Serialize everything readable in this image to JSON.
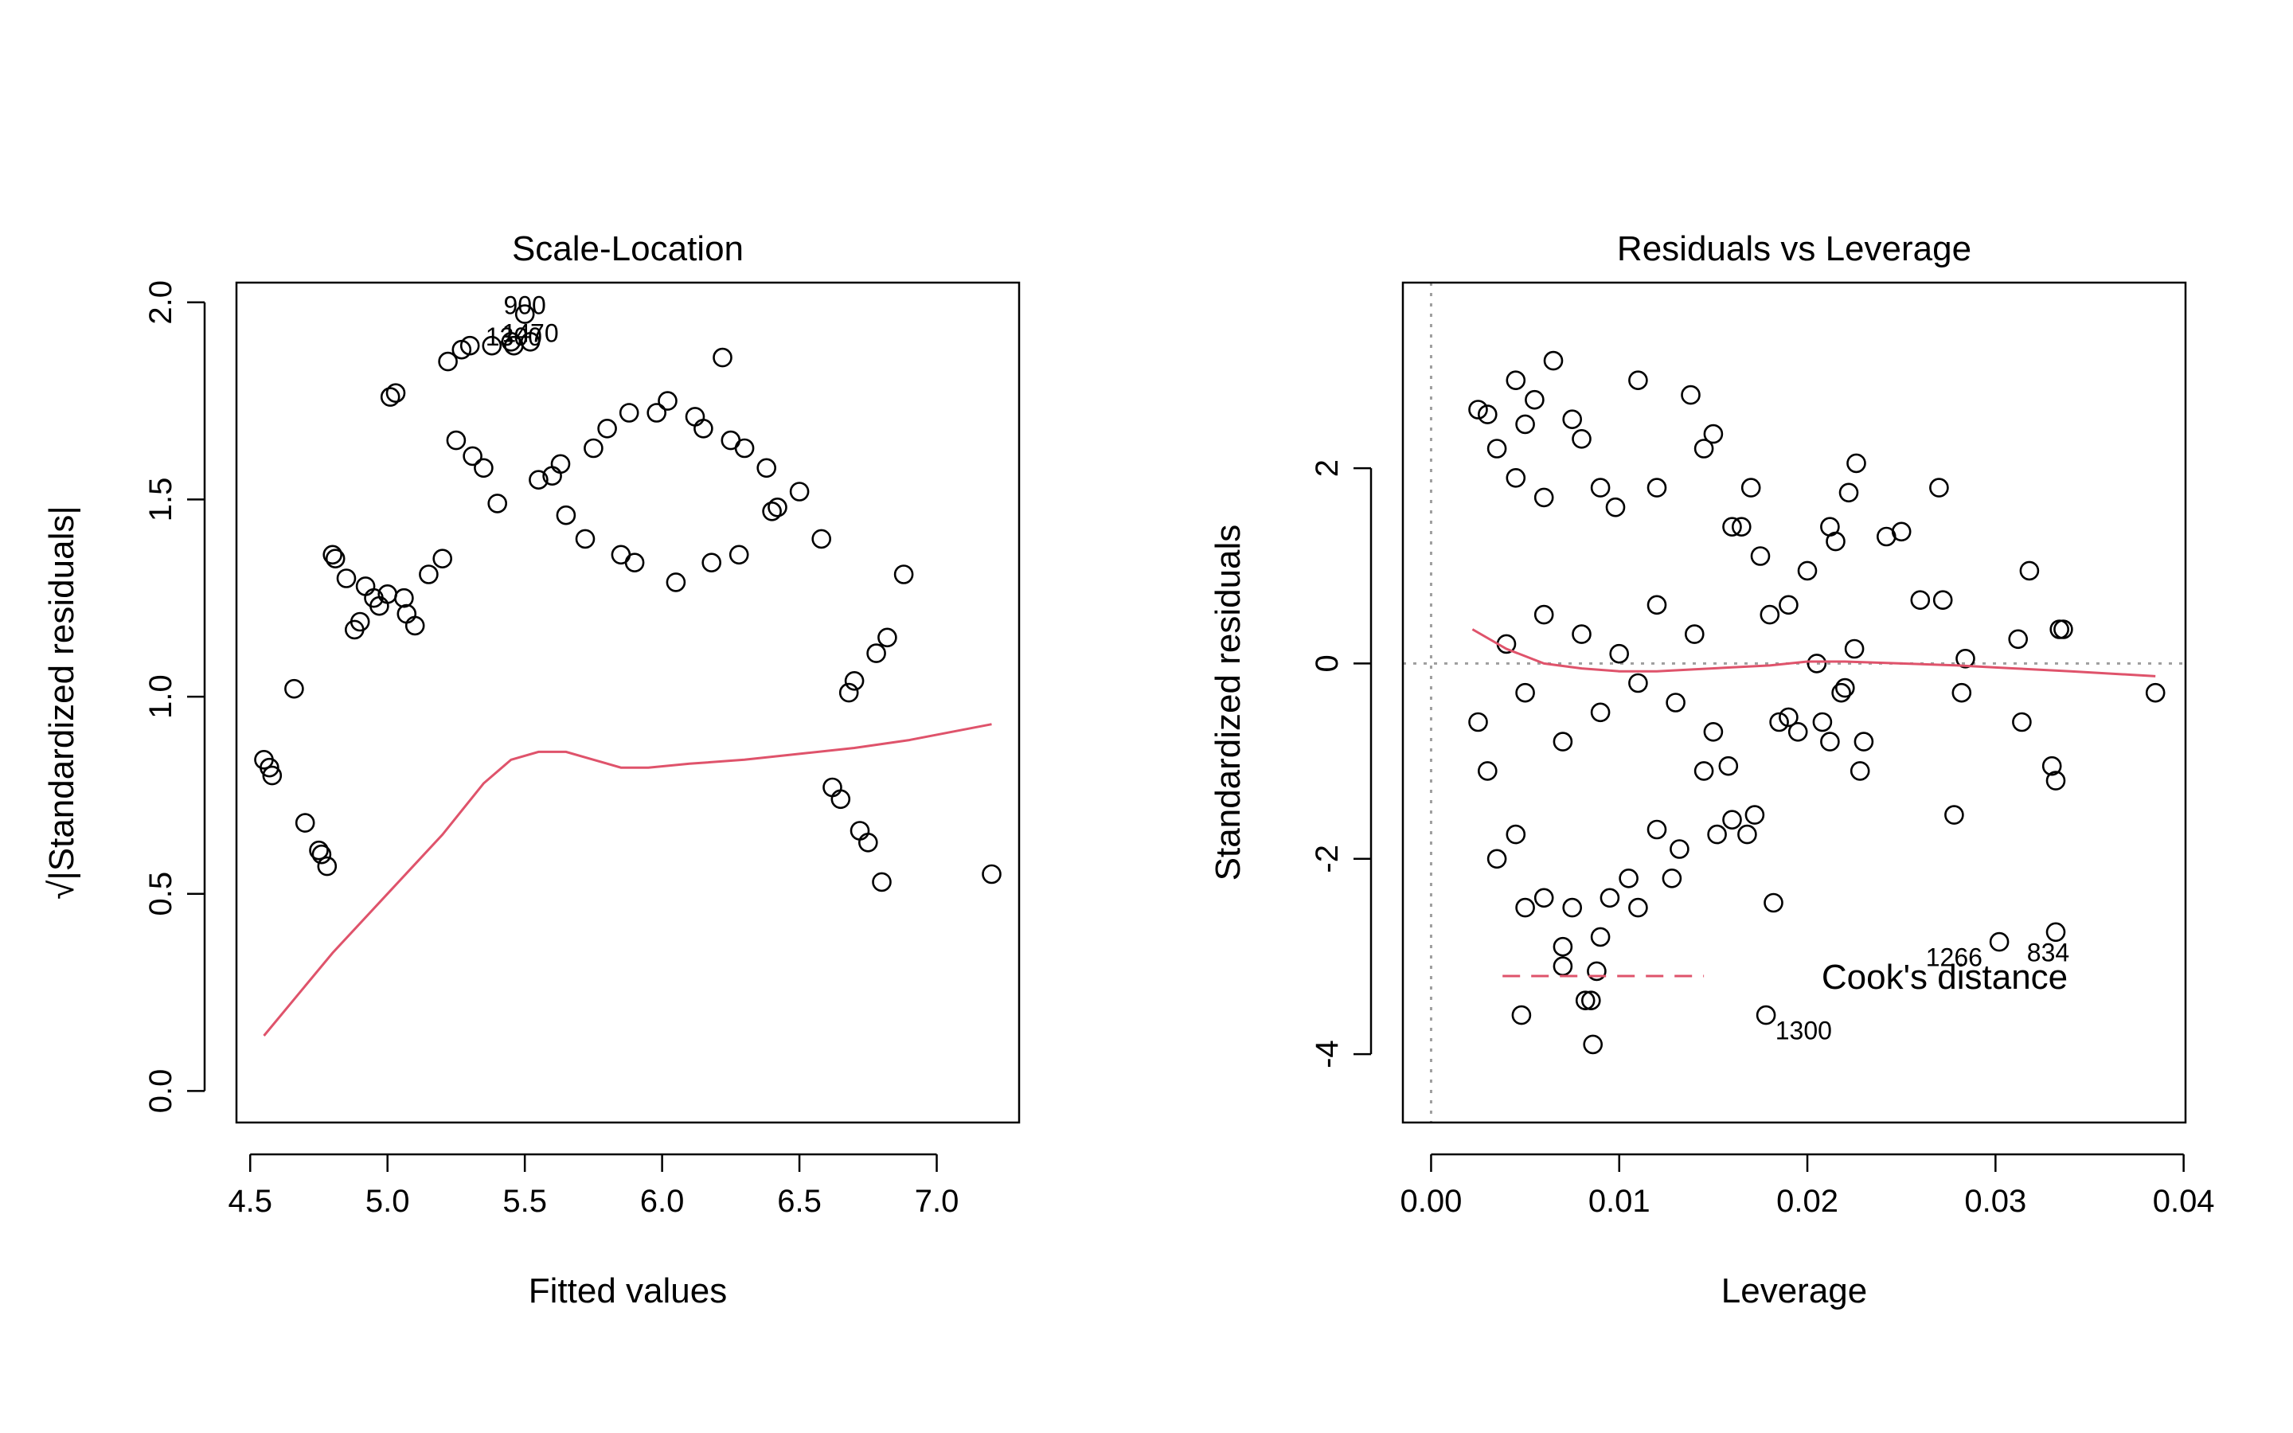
{
  "chart_data": [
    {
      "type": "scatter",
      "title": "Scale-Location",
      "xlabel": "Fitted values",
      "ylabel": "√|Standardized residuals|",
      "xlim": [
        4.45,
        7.3
      ],
      "ylim": [
        -0.08,
        2.05
      ],
      "xticks": [
        "4.5",
        "5.0",
        "5.5",
        "6.0",
        "6.5",
        "7.0"
      ],
      "yticks": [
        "0.0",
        "0.5",
        "1.0",
        "1.5",
        "2.0"
      ],
      "annotations": [
        {
          "text": "900",
          "x": 5.5,
          "y": 1.97
        },
        {
          "text": "1470",
          "x": 5.52,
          "y": 1.9
        },
        {
          "text": "1300",
          "x": 5.46,
          "y": 1.89
        }
      ],
      "series": [
        {
          "name": "",
          "kind": "points",
          "color": "#000000",
          "note": "Observed points form V-shaped bands with minima near fitted values 5.0 and 6.0, plus scattered outliers",
          "points": [
            [
              4.55,
              0.84
            ],
            [
              4.57,
              0.82
            ],
            [
              4.58,
              0.8
            ],
            [
              4.66,
              1.02
            ],
            [
              4.7,
              0.68
            ],
            [
              4.75,
              0.61
            ],
            [
              4.76,
              0.6
            ],
            [
              4.78,
              0.57
            ],
            [
              4.8,
              1.36
            ],
            [
              4.81,
              1.35
            ],
            [
              4.85,
              1.3
            ],
            [
              4.88,
              1.17
            ],
            [
              4.9,
              1.19
            ],
            [
              4.92,
              1.28
            ],
            [
              4.95,
              1.25
            ],
            [
              4.97,
              1.23
            ],
            [
              5.0,
              1.26
            ],
            [
              5.01,
              1.76
            ],
            [
              5.03,
              1.77
            ],
            [
              5.06,
              1.25
            ],
            [
              5.07,
              1.21
            ],
            [
              5.1,
              1.18
            ],
            [
              5.15,
              1.31
            ],
            [
              5.2,
              1.35
            ],
            [
              5.22,
              1.85
            ],
            [
              5.25,
              1.65
            ],
            [
              5.27,
              1.88
            ],
            [
              5.3,
              1.89
            ],
            [
              5.31,
              1.61
            ],
            [
              5.35,
              1.58
            ],
            [
              5.38,
              1.89
            ],
            [
              5.4,
              1.49
            ],
            [
              5.45,
              1.9
            ],
            [
              5.46,
              1.89
            ],
            [
              5.5,
              1.97
            ],
            [
              5.52,
              1.9
            ],
            [
              5.55,
              1.55
            ],
            [
              5.6,
              1.56
            ],
            [
              5.63,
              1.59
            ],
            [
              5.65,
              1.46
            ],
            [
              5.72,
              1.4
            ],
            [
              5.75,
              1.63
            ],
            [
              5.8,
              1.68
            ],
            [
              5.85,
              1.36
            ],
            [
              5.88,
              1.72
            ],
            [
              5.9,
              1.34
            ],
            [
              5.98,
              1.72
            ],
            [
              6.02,
              1.75
            ],
            [
              6.05,
              1.29
            ],
            [
              6.12,
              1.71
            ],
            [
              6.15,
              1.68
            ],
            [
              6.18,
              1.34
            ],
            [
              6.22,
              1.86
            ],
            [
              6.25,
              1.65
            ],
            [
              6.28,
              1.36
            ],
            [
              6.3,
              1.63
            ],
            [
              6.38,
              1.58
            ],
            [
              6.4,
              1.47
            ],
            [
              6.42,
              1.48
            ],
            [
              6.5,
              1.52
            ],
            [
              6.58,
              1.4
            ],
            [
              6.62,
              0.77
            ],
            [
              6.65,
              0.74
            ],
            [
              6.68,
              1.01
            ],
            [
              6.7,
              1.04
            ],
            [
              6.72,
              0.66
            ],
            [
              6.75,
              0.63
            ],
            [
              6.78,
              1.11
            ],
            [
              6.8,
              0.53
            ],
            [
              6.82,
              1.15
            ],
            [
              6.88,
              1.31
            ],
            [
              7.2,
              0.55
            ]
          ]
        },
        {
          "name": "",
          "kind": "line",
          "color": "#DF536B",
          "x": [
            4.55,
            4.8,
            5.0,
            5.2,
            5.35,
            5.45,
            5.55,
            5.65,
            5.75,
            5.85,
            5.95,
            6.1,
            6.3,
            6.5,
            6.7,
            6.9,
            7.2
          ],
          "y": [
            0.14,
            0.35,
            0.5,
            0.65,
            0.78,
            0.84,
            0.86,
            0.86,
            0.84,
            0.82,
            0.82,
            0.83,
            0.84,
            0.855,
            0.87,
            0.89,
            0.93
          ]
        }
      ]
    },
    {
      "type": "scatter",
      "title": "Residuals vs Leverage",
      "xlabel": "Leverage",
      "ylabel": "Standardized residuals",
      "xlim": [
        -0.0015,
        0.0401
      ],
      "ylim": [
        -4.7,
        3.9
      ],
      "xticks": [
        "0.00",
        "0.01",
        "0.02",
        "0.03",
        "0.04"
      ],
      "yticks": [
        "-4",
        "-2",
        "0",
        "2"
      ],
      "legend": {
        "text": "Cook's distance",
        "position": "bottom-right"
      },
      "annotations": [
        {
          "text": "1266",
          "x": 0.0278,
          "y": -3.1
        },
        {
          "text": "834",
          "x": 0.0328,
          "y": -3.05
        },
        {
          "text": "1300",
          "x": 0.0198,
          "y": -3.85
        }
      ],
      "series": [
        {
          "name": "",
          "kind": "points",
          "color": "#000000",
          "note": "Dense cloud of points at leverage 0.002–0.015 with residuals between about -3 and 3, plus sparse points at higher leverage",
          "points": [
            [
              0.0025,
              2.6
            ],
            [
              0.003,
              2.55
            ],
            [
              0.0045,
              2.9
            ],
            [
              0.005,
              2.45
            ],
            [
              0.0055,
              2.7
            ],
            [
              0.0065,
              3.1
            ],
            [
              0.0035,
              2.2
            ],
            [
              0.0045,
              1.9
            ],
            [
              0.006,
              1.7
            ],
            [
              0.0075,
              2.5
            ],
            [
              0.008,
              2.3
            ],
            [
              0.009,
              1.8
            ],
            [
              0.0098,
              1.6
            ],
            [
              0.011,
              2.9
            ],
            [
              0.012,
              1.8
            ],
            [
              0.0138,
              2.75
            ],
            [
              0.0145,
              2.2
            ],
            [
              0.015,
              2.35
            ],
            [
              0.016,
              1.4
            ],
            [
              0.0165,
              1.4
            ],
            [
              0.017,
              1.8
            ],
            [
              0.0175,
              1.1
            ],
            [
              0.018,
              0.5
            ],
            [
              0.019,
              0.6
            ],
            [
              0.02,
              0.95
            ],
            [
              0.0205,
              0.0
            ],
            [
              0.0212,
              1.4
            ],
            [
              0.0215,
              1.25
            ],
            [
              0.0218,
              -0.3
            ],
            [
              0.022,
              -0.25
            ],
            [
              0.0222,
              1.75
            ],
            [
              0.0225,
              0.15
            ],
            [
              0.0226,
              2.05
            ],
            [
              0.0228,
              -1.1
            ],
            [
              0.023,
              -0.8
            ],
            [
              0.0242,
              1.3
            ],
            [
              0.025,
              1.35
            ],
            [
              0.026,
              0.65
            ],
            [
              0.027,
              1.8
            ],
            [
              0.0272,
              0.65
            ],
            [
              0.0278,
              -1.55
            ],
            [
              0.0282,
              -0.3
            ],
            [
              0.0284,
              0.05
            ],
            [
              0.0312,
              0.25
            ],
            [
              0.0314,
              -0.6
            ],
            [
              0.0318,
              0.95
            ],
            [
              0.033,
              -1.05
            ],
            [
              0.0332,
              -1.2
            ],
            [
              0.0334,
              0.35
            ],
            [
              0.0336,
              0.35
            ],
            [
              0.0385,
              -0.3
            ],
            [
              0.0025,
              -0.6
            ],
            [
              0.003,
              -1.1
            ],
            [
              0.0035,
              -2.0
            ],
            [
              0.0045,
              -1.75
            ],
            [
              0.0048,
              -3.6
            ],
            [
              0.005,
              -2.5
            ],
            [
              0.006,
              -2.4
            ],
            [
              0.007,
              -2.9
            ],
            [
              0.007,
              -3.1
            ],
            [
              0.0075,
              -2.5
            ],
            [
              0.0082,
              -3.45
            ],
            [
              0.0085,
              -3.45
            ],
            [
              0.0086,
              -3.9
            ],
            [
              0.0088,
              -3.15
            ],
            [
              0.009,
              -2.8
            ],
            [
              0.0095,
              -2.4
            ],
            [
              0.0105,
              -2.2
            ],
            [
              0.011,
              -2.5
            ],
            [
              0.012,
              -1.7
            ],
            [
              0.0128,
              -2.2
            ],
            [
              0.0132,
              -1.9
            ],
            [
              0.0145,
              -1.1
            ],
            [
              0.0152,
              -1.75
            ],
            [
              0.0158,
              -1.05
            ],
            [
              0.016,
              -1.6
            ],
            [
              0.0168,
              -1.75
            ],
            [
              0.0172,
              -1.55
            ],
            [
              0.0178,
              -3.6
            ],
            [
              0.0182,
              -2.45
            ],
            [
              0.0185,
              -0.6
            ],
            [
              0.019,
              -0.55
            ],
            [
              0.0195,
              -0.7
            ],
            [
              0.0208,
              -0.6
            ],
            [
              0.0212,
              -0.8
            ],
            [
              0.0302,
              -2.85
            ],
            [
              0.0332,
              -2.75
            ],
            [
              0.004,
              0.2
            ],
            [
              0.005,
              -0.3
            ],
            [
              0.006,
              0.5
            ],
            [
              0.007,
              -0.8
            ],
            [
              0.008,
              0.3
            ],
            [
              0.009,
              -0.5
            ],
            [
              0.01,
              0.1
            ],
            [
              0.011,
              -0.2
            ],
            [
              0.012,
              0.6
            ],
            [
              0.013,
              -0.4
            ],
            [
              0.014,
              0.3
            ],
            [
              0.015,
              -0.7
            ]
          ]
        },
        {
          "name": "",
          "kind": "line",
          "color": "#DF536B",
          "x": [
            0.0022,
            0.004,
            0.006,
            0.008,
            0.01,
            0.012,
            0.014,
            0.016,
            0.018,
            0.02,
            0.022,
            0.025,
            0.028,
            0.031,
            0.034,
            0.0385
          ],
          "y": [
            0.35,
            0.15,
            0.0,
            -0.05,
            -0.08,
            -0.08,
            -0.06,
            -0.04,
            -0.02,
            0.02,
            0.02,
            0.0,
            -0.02,
            -0.05,
            -0.08,
            -0.13
          ]
        },
        {
          "name": "Cook's distance",
          "kind": "dashed-line",
          "color": "#DF536B",
          "x": [
            0.0038,
            0.0145
          ],
          "y": [
            -3.2,
            -3.2
          ]
        }
      ]
    }
  ]
}
